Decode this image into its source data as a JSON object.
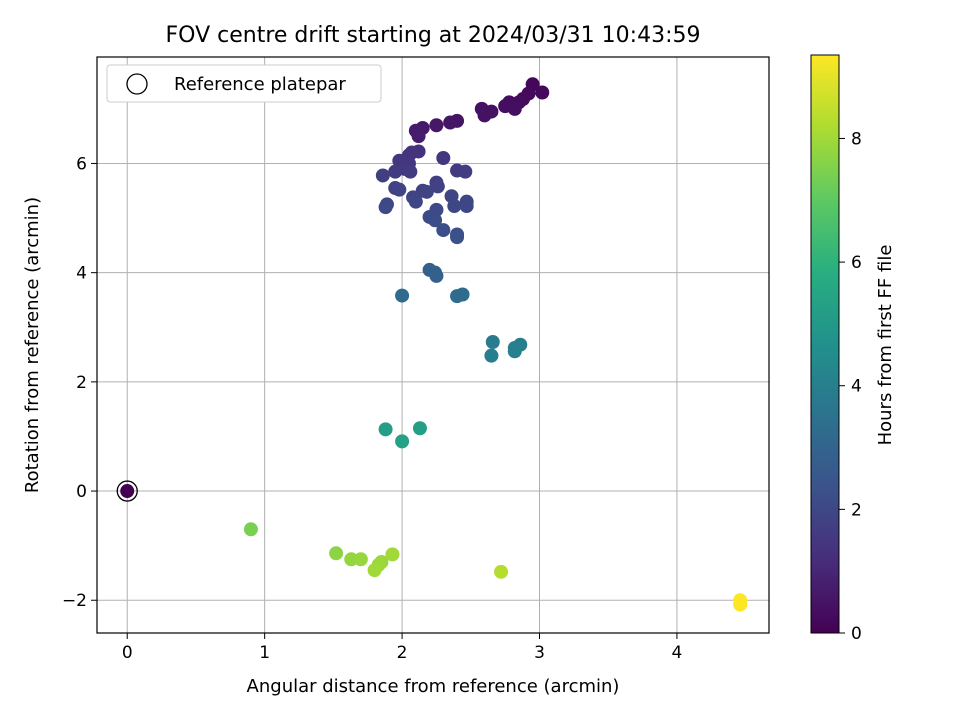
{
  "chart_data": {
    "type": "scatter",
    "title": "FOV centre drift starting at 2024/03/31 10:43:59",
    "xlabel": "Angular distance from reference (arcmin)",
    "ylabel": "Rotation from reference (arcmin)",
    "xlim": [
      -0.22,
      4.67
    ],
    "ylim": [
      -2.6,
      7.95
    ],
    "xticks": [
      0,
      1,
      2,
      3,
      4
    ],
    "yticks": [
      -2,
      0,
      2,
      4,
      6
    ],
    "grid": true,
    "legend": {
      "placement": "top-left",
      "entries": [
        "Reference platepar"
      ]
    },
    "colorbar": {
      "label": "Hours from first FF file",
      "range": [
        0,
        9.35
      ],
      "ticks": [
        0,
        2,
        4,
        6,
        8
      ],
      "colormap": "viridis"
    },
    "reference": {
      "x": 0,
      "y": 0
    },
    "points": [
      {
        "x": 0.0,
        "y": 0.0,
        "c": 0.0
      },
      {
        "x": 2.95,
        "y": 7.45,
        "c": 0.15
      },
      {
        "x": 3.02,
        "y": 7.3,
        "c": 0.2
      },
      {
        "x": 2.92,
        "y": 7.28,
        "c": 0.22
      },
      {
        "x": 2.88,
        "y": 7.18,
        "c": 0.25
      },
      {
        "x": 2.85,
        "y": 7.12,
        "c": 0.28
      },
      {
        "x": 2.8,
        "y": 7.05,
        "c": 0.3
      },
      {
        "x": 2.78,
        "y": 7.12,
        "c": 0.32
      },
      {
        "x": 2.75,
        "y": 7.05,
        "c": 0.35
      },
      {
        "x": 2.82,
        "y": 7.0,
        "c": 0.38
      },
      {
        "x": 2.65,
        "y": 6.95,
        "c": 0.4
      },
      {
        "x": 2.58,
        "y": 7.0,
        "c": 0.42
      },
      {
        "x": 2.6,
        "y": 6.88,
        "c": 0.45
      },
      {
        "x": 2.4,
        "y": 6.78,
        "c": 0.5
      },
      {
        "x": 2.35,
        "y": 6.75,
        "c": 0.55
      },
      {
        "x": 2.25,
        "y": 6.7,
        "c": 0.6
      },
      {
        "x": 2.15,
        "y": 6.65,
        "c": 0.65
      },
      {
        "x": 2.1,
        "y": 6.6,
        "c": 0.7
      },
      {
        "x": 2.12,
        "y": 6.5,
        "c": 0.75
      },
      {
        "x": 2.12,
        "y": 6.22,
        "c": 1.3
      },
      {
        "x": 2.05,
        "y": 6.15,
        "c": 1.4
      },
      {
        "x": 2.07,
        "y": 6.2,
        "c": 1.35
      },
      {
        "x": 1.98,
        "y": 6.05,
        "c": 1.45
      },
      {
        "x": 2.05,
        "y": 6.0,
        "c": 1.5
      },
      {
        "x": 2.02,
        "y": 5.9,
        "c": 1.55
      },
      {
        "x": 2.06,
        "y": 5.85,
        "c": 1.6
      },
      {
        "x": 2.3,
        "y": 6.1,
        "c": 1.5
      },
      {
        "x": 1.95,
        "y": 5.85,
        "c": 1.6
      },
      {
        "x": 1.86,
        "y": 5.78,
        "c": 1.7
      },
      {
        "x": 2.4,
        "y": 5.87,
        "c": 1.6
      },
      {
        "x": 2.46,
        "y": 5.85,
        "c": 1.65
      },
      {
        "x": 1.95,
        "y": 5.55,
        "c": 1.8
      },
      {
        "x": 1.98,
        "y": 5.52,
        "c": 1.85
      },
      {
        "x": 2.15,
        "y": 5.5,
        "c": 1.8
      },
      {
        "x": 2.18,
        "y": 5.48,
        "c": 1.85
      },
      {
        "x": 2.25,
        "y": 5.65,
        "c": 1.75
      },
      {
        "x": 2.26,
        "y": 5.58,
        "c": 1.8
      },
      {
        "x": 2.08,
        "y": 5.38,
        "c": 1.9
      },
      {
        "x": 2.1,
        "y": 5.3,
        "c": 1.95
      },
      {
        "x": 2.36,
        "y": 5.4,
        "c": 1.9
      },
      {
        "x": 2.47,
        "y": 5.3,
        "c": 1.95
      },
      {
        "x": 2.47,
        "y": 5.22,
        "c": 2.0
      },
      {
        "x": 2.38,
        "y": 5.22,
        "c": 2.0
      },
      {
        "x": 1.89,
        "y": 5.25,
        "c": 2.0
      },
      {
        "x": 1.88,
        "y": 5.2,
        "c": 2.05
      },
      {
        "x": 2.25,
        "y": 5.15,
        "c": 2.05
      },
      {
        "x": 2.2,
        "y": 5.02,
        "c": 2.1
      },
      {
        "x": 2.24,
        "y": 4.96,
        "c": 2.15
      },
      {
        "x": 2.3,
        "y": 4.78,
        "c": 2.2
      },
      {
        "x": 2.4,
        "y": 4.7,
        "c": 2.25
      },
      {
        "x": 2.4,
        "y": 4.65,
        "c": 2.3
      },
      {
        "x": 2.2,
        "y": 4.05,
        "c": 2.8
      },
      {
        "x": 2.24,
        "y": 4.0,
        "c": 2.85
      },
      {
        "x": 2.25,
        "y": 3.94,
        "c": 2.9
      },
      {
        "x": 2.0,
        "y": 3.58,
        "c": 3.2
      },
      {
        "x": 2.4,
        "y": 3.57,
        "c": 3.2
      },
      {
        "x": 2.44,
        "y": 3.6,
        "c": 3.25
      },
      {
        "x": 2.66,
        "y": 2.73,
        "c": 3.9
      },
      {
        "x": 2.65,
        "y": 2.48,
        "c": 4.0
      },
      {
        "x": 2.86,
        "y": 2.68,
        "c": 3.95
      },
      {
        "x": 2.82,
        "y": 2.62,
        "c": 4.0
      },
      {
        "x": 2.82,
        "y": 2.56,
        "c": 4.05
      },
      {
        "x": 1.88,
        "y": 1.13,
        "c": 5.2
      },
      {
        "x": 2.0,
        "y": 0.91,
        "c": 5.3
      },
      {
        "x": 2.13,
        "y": 1.15,
        "c": 5.25
      },
      {
        "x": 0.9,
        "y": -0.7,
        "c": 7.4
      },
      {
        "x": 1.52,
        "y": -1.14,
        "c": 7.7
      },
      {
        "x": 1.63,
        "y": -1.25,
        "c": 7.8
      },
      {
        "x": 1.7,
        "y": -1.25,
        "c": 7.85
      },
      {
        "x": 1.85,
        "y": -1.3,
        "c": 7.9
      },
      {
        "x": 1.83,
        "y": -1.35,
        "c": 7.95
      },
      {
        "x": 1.8,
        "y": -1.45,
        "c": 8.0
      },
      {
        "x": 1.93,
        "y": -1.16,
        "c": 8.0
      },
      {
        "x": 2.72,
        "y": -1.48,
        "c": 8.3
      },
      {
        "x": 4.46,
        "y": -2.0,
        "c": 9.35
      },
      {
        "x": 4.46,
        "y": -2.08,
        "c": 9.35
      }
    ]
  }
}
